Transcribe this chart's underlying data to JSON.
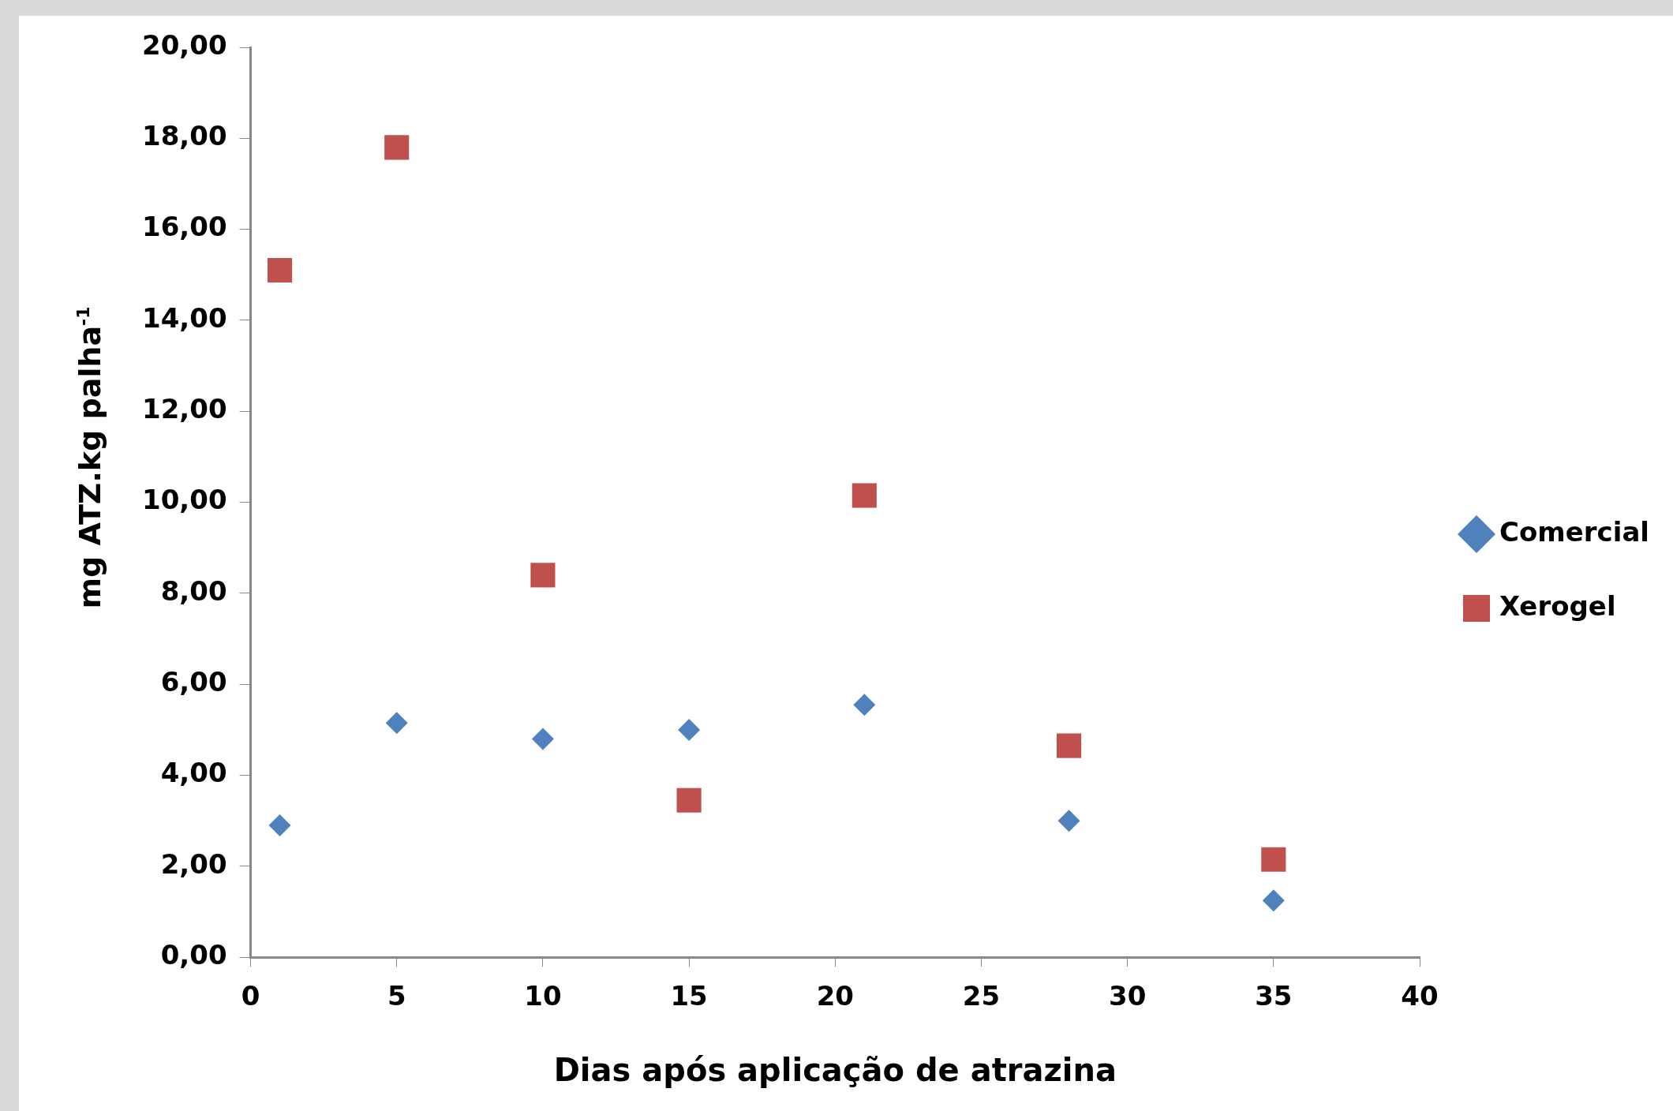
{
  "chart_data": {
    "type": "scatter",
    "xlabel": "Dias após aplicação de atrazina",
    "ylabel": "mg ATZ.kg palha$^{-1}$",
    "xlim": [
      0,
      40
    ],
    "xticks": [
      0,
      5,
      10,
      15,
      20,
      25,
      30,
      35,
      40
    ],
    "ylim": [
      0,
      20
    ],
    "yticks": [
      {
        "value": 0,
        "label": "0,00"
      },
      {
        "value": 2,
        "label": "2,00"
      },
      {
        "value": 4,
        "label": "4,00"
      },
      {
        "value": 6,
        "label": "6,00"
      },
      {
        "value": 8,
        "label": "8,00"
      },
      {
        "value": 10,
        "label": "10,00"
      },
      {
        "value": 12,
        "label": "12,00"
      },
      {
        "value": 14,
        "label": "14,00"
      },
      {
        "value": 16,
        "label": "16,00"
      },
      {
        "value": 18,
        "label": "18,00"
      },
      {
        "value": 20,
        "label": "20,00"
      }
    ],
    "grid": false,
    "legend": "right",
    "series": [
      {
        "name": "Comercial",
        "color": "#4f81bd",
        "marker": "diamond",
        "x": [
          1,
          5,
          10,
          15,
          21,
          28,
          35
        ],
        "values": [
          2.9,
          5.15,
          4.8,
          5.0,
          5.55,
          3.0,
          1.25
        ]
      },
      {
        "name": "Xerogel",
        "color": "#c0504d",
        "marker": "square",
        "x": [
          1,
          5,
          10,
          15,
          21,
          28,
          35
        ],
        "values": [
          15.1,
          17.8,
          8.4,
          3.45,
          10.15,
          4.65,
          2.15
        ]
      }
    ]
  }
}
